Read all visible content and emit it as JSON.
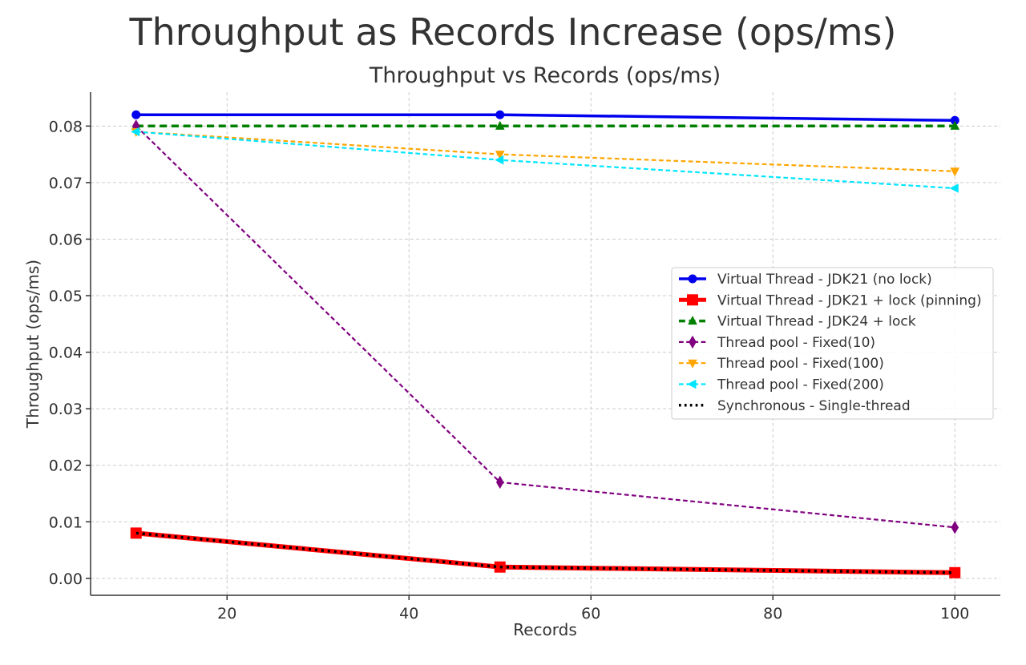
{
  "chart_data": {
    "type": "line",
    "suptitle": "Throughput as Records Increase (ops/ms)",
    "title": "Throughput vs Records (ops/ms)",
    "xlabel": "Records",
    "ylabel": "Throughput (ops/ms)",
    "x": [
      10,
      50,
      100
    ],
    "xlim": [
      5,
      105
    ],
    "ylim": [
      -0.003,
      0.086
    ],
    "xticks": [
      20,
      40,
      60,
      80,
      100
    ],
    "yticks": [
      0.0,
      0.01,
      0.02,
      0.03,
      0.04,
      0.05,
      0.06,
      0.07,
      0.08
    ],
    "xtick_labels": [
      "20",
      "40",
      "60",
      "80",
      "100"
    ],
    "ytick_labels": [
      "0.00",
      "0.01",
      "0.02",
      "0.03",
      "0.04",
      "0.05",
      "0.06",
      "0.07",
      "0.08"
    ],
    "grid": true,
    "legend_position": "center-right",
    "series": [
      {
        "name": "Virtual Thread - JDK21 (no lock)",
        "values": [
          0.082,
          0.082,
          0.081
        ],
        "color": "#0000ee",
        "linestyle": "solid",
        "marker": "circle",
        "linewidth": 3.5
      },
      {
        "name": "Virtual Thread - JDK21 + lock (pinning)",
        "values": [
          0.008,
          0.002,
          0.001
        ],
        "color": "#ff0000",
        "linestyle": "solid",
        "marker": "square",
        "linewidth": 6
      },
      {
        "name": "Virtual Thread - JDK24 + lock",
        "values": [
          0.08,
          0.08,
          0.08
        ],
        "color": "#008000",
        "linestyle": "dashed",
        "marker": "triangle-up",
        "linewidth": 3.5
      },
      {
        "name": "Thread pool - Fixed(10)",
        "values": [
          0.08,
          0.017,
          0.009
        ],
        "color": "#800080",
        "linestyle": "dashed",
        "marker": "diamond",
        "linewidth": 2.2
      },
      {
        "name": "Thread pool - Fixed(100)",
        "values": [
          0.079,
          0.075,
          0.072
        ],
        "color": "#ffa500",
        "linestyle": "dashed",
        "marker": "triangle-down",
        "linewidth": 2.2
      },
      {
        "name": "Thread pool - Fixed(200)",
        "values": [
          0.079,
          0.074,
          0.069
        ],
        "color": "#00e5ff",
        "linestyle": "dashed",
        "marker": "triangle-left",
        "linewidth": 2.2
      },
      {
        "name": "Synchronous - Single-thread",
        "values": [
          0.008,
          0.002,
          0.001
        ],
        "color": "#000000",
        "linestyle": "dotted",
        "marker": "none",
        "linewidth": 3.5
      }
    ]
  }
}
